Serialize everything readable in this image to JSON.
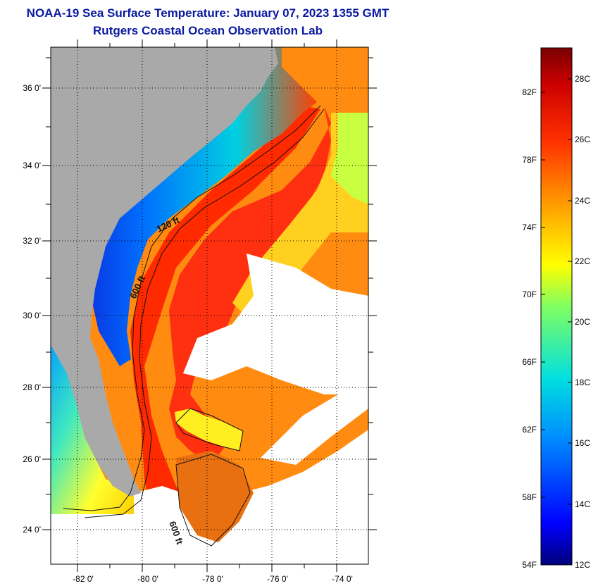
{
  "title_line1": "NOAA-19 Sea Surface Temperature:  January 07, 2023 1355 GMT",
  "title_line2": "Rutgers Coastal Ocean Observation Lab",
  "lat_labels": [
    "36 0'",
    "34 0'",
    "32 0'",
    "30 0'",
    "28 0'",
    "26 0'",
    "24 0'"
  ],
  "lon_labels": [
    "-82 0'",
    "-80 0'",
    "-78 0'",
    "-76 0'",
    "-74 0'"
  ],
  "contour_labels": [
    "120 ft",
    "600 ft",
    "600 ft"
  ],
  "colorbar": {
    "fahrenheit_labels": [
      "82F",
      "78F",
      "74F",
      "70F",
      "66F",
      "62F",
      "58F",
      "54F"
    ],
    "celsius_labels": [
      "28C",
      "26C",
      "24C",
      "22C",
      "20C",
      "18C",
      "16C",
      "14C",
      "12C"
    ]
  },
  "colors": {
    "land": "#a9a9a9",
    "cloud": "#ffffff",
    "title": "#0a1aa0"
  }
}
